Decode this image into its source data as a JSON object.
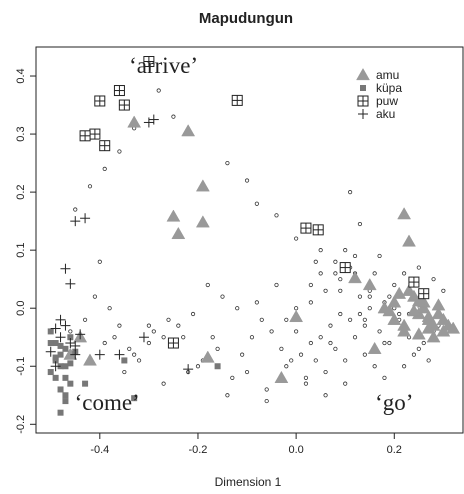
{
  "chart_data": {
    "type": "scatter",
    "title": "Mapudungun",
    "xlabel": "Dimension 1",
    "ylabel": "",
    "xlim": [
      -0.53,
      0.34
    ],
    "ylim": [
      -0.215,
      0.45
    ],
    "xticks": [
      -0.4,
      -0.2,
      0.0,
      0.2
    ],
    "yticks": [
      -0.2,
      -0.1,
      0.0,
      0.1,
      0.2,
      0.3,
      0.4
    ],
    "grid": false,
    "legend_position": "top-right",
    "annotations": [
      {
        "text": "‘arrive’",
        "x": -0.27,
        "y": 0.405
      },
      {
        "text": "‘come’",
        "x": -0.385,
        "y": -0.175
      },
      {
        "text": "‘go’",
        "x": 0.2,
        "y": -0.175
      }
    ],
    "series": [
      {
        "name": "amu",
        "marker": "triangle",
        "color": "#999999",
        "x": [
          -0.33,
          -0.22,
          -0.19,
          -0.25,
          -0.24,
          -0.19,
          -0.18,
          -0.44,
          -0.46,
          -0.42,
          -0.03,
          0.0,
          0.12,
          0.16,
          0.18,
          0.2,
          0.22,
          0.23,
          0.2,
          0.22,
          0.24,
          0.25,
          0.26,
          0.27,
          0.28,
          0.29,
          0.3,
          0.31,
          0.22,
          0.25,
          0.27,
          0.23,
          0.26,
          0.28,
          0.29,
          0.24,
          0.27,
          0.3,
          0.21,
          0.19,
          0.15,
          0.32,
          0.25
        ],
        "y": [
          0.32,
          0.305,
          0.21,
          0.158,
          0.128,
          0.148,
          -0.085,
          -0.05,
          -0.08,
          -0.09,
          -0.12,
          -0.015,
          0.052,
          -0.07,
          0.0,
          0.01,
          0.162,
          0.115,
          -0.02,
          -0.03,
          0.02,
          -0.01,
          0.0,
          -0.02,
          -0.03,
          -0.01,
          -0.02,
          -0.03,
          -0.04,
          -0.045,
          -0.035,
          0.03,
          0.01,
          -0.05,
          0.005,
          -0.005,
          -0.015,
          -0.04,
          0.025,
          -0.005,
          0.04,
          -0.035,
          0.012
        ]
      },
      {
        "name": "küpa",
        "marker": "square",
        "color": "#777777",
        "x": [
          -0.5,
          -0.49,
          -0.48,
          -0.47,
          -0.49,
          -0.48,
          -0.47,
          -0.46,
          -0.49,
          -0.5,
          -0.48,
          -0.47,
          -0.46,
          -0.47,
          -0.48,
          -0.49,
          -0.46,
          -0.45,
          -0.5,
          -0.47,
          -0.48,
          -0.43,
          -0.33,
          -0.35,
          -0.16
        ],
        "y": [
          -0.04,
          -0.06,
          -0.08,
          -0.1,
          -0.12,
          -0.14,
          -0.16,
          -0.05,
          -0.09,
          -0.11,
          -0.18,
          -0.07,
          -0.13,
          -0.15,
          -0.065,
          -0.085,
          -0.095,
          -0.075,
          -0.06,
          -0.12,
          -0.1,
          -0.13,
          -0.155,
          -0.09,
          -0.1
        ]
      },
      {
        "name": "puw",
        "marker": "boxplus",
        "color": "#222222",
        "x": [
          -0.3,
          -0.4,
          -0.36,
          -0.41,
          -0.35,
          -0.43,
          -0.39,
          -0.12,
          0.02,
          0.045,
          0.1,
          0.24,
          0.26,
          -0.25
        ],
        "y": [
          0.425,
          0.357,
          0.375,
          0.3,
          0.35,
          0.297,
          0.28,
          0.358,
          0.138,
          0.135,
          0.07,
          0.045,
          0.025,
          -0.06
        ]
      },
      {
        "name": "aku",
        "marker": "plus",
        "color": "#222222",
        "x": [
          -0.45,
          -0.43,
          -0.47,
          -0.46,
          -0.48,
          -0.48,
          -0.5,
          -0.47,
          -0.45,
          -0.44,
          -0.46,
          -0.49,
          -0.49,
          -0.45,
          -0.3,
          -0.29,
          -0.4,
          -0.36,
          -0.22,
          -0.31
        ],
        "y": [
          0.15,
          0.155,
          0.068,
          0.042,
          -0.02,
          -0.05,
          -0.075,
          -0.03,
          -0.08,
          -0.045,
          -0.06,
          -0.035,
          -0.1,
          -0.065,
          0.32,
          0.325,
          -0.08,
          -0.08,
          -0.105,
          -0.05
        ],
        "marker_style": "star"
      },
      {
        "name": "",
        "marker": "circle",
        "color": "#333333",
        "x": [
          -0.28,
          -0.25,
          -0.33,
          -0.36,
          -0.39,
          -0.42,
          -0.45,
          -0.14,
          -0.1,
          -0.08,
          -0.04,
          0.0,
          0.05,
          0.08,
          0.12,
          0.15,
          0.18,
          0.2,
          0.22,
          0.25,
          0.28,
          0.3,
          0.11,
          0.13,
          0.09,
          0.07,
          0.05,
          0.03,
          0.01,
          -0.01,
          -0.03,
          -0.05,
          -0.07,
          -0.12,
          -0.15,
          -0.18,
          -0.21,
          -0.24,
          -0.27,
          -0.3,
          -0.33,
          -0.36,
          -0.39,
          -0.42,
          0.14,
          0.16,
          0.06,
          0.04,
          0.02,
          0.08,
          0.1,
          0.12,
          0.14,
          0.17,
          0.19,
          0.21,
          0.23,
          0.0,
          -0.02,
          0.03,
          0.06,
          0.09,
          0.11,
          0.13,
          0.15,
          -0.09,
          -0.11,
          -0.13,
          -0.06,
          -0.2,
          -0.23,
          -0.26,
          -0.29,
          -0.32,
          -0.35,
          -0.38,
          -0.41,
          0.18,
          0.22,
          0.24,
          0.26,
          0.28,
          0.2,
          0.16,
          0.12,
          0.08,
          0.04,
          -0.04,
          -0.08,
          -0.16,
          -0.19,
          -0.22,
          -0.27,
          0.06,
          0.1,
          0.14,
          0.18,
          0.02,
          -0.02,
          0.07,
          0.11,
          0.15,
          0.03,
          0.05,
          0.09,
          0.13,
          0.17,
          -0.1,
          -0.14,
          -0.17,
          -0.06,
          -0.3,
          -0.34,
          -0.37,
          -0.4,
          -0.43,
          0.0,
          0.19,
          0.21,
          0.23,
          0.25,
          0.27,
          0.29,
          0.1,
          0.12,
          -0.46
        ],
        "y": [
          0.375,
          0.33,
          0.31,
          0.27,
          0.24,
          0.21,
          0.17,
          0.25,
          0.22,
          0.18,
          0.16,
          0.12,
          0.1,
          0.08,
          0.05,
          0.03,
          0.01,
          0.04,
          0.06,
          0.07,
          0.05,
          0.03,
          0.2,
          0.145,
          -0.01,
          -0.03,
          -0.05,
          -0.06,
          -0.08,
          -0.09,
          -0.07,
          -0.04,
          -0.02,
          0.0,
          0.02,
          0.04,
          -0.01,
          -0.03,
          -0.05,
          -0.06,
          -0.08,
          -0.03,
          -0.06,
          -0.09,
          -0.08,
          -0.1,
          -0.11,
          -0.09,
          -0.12,
          -0.07,
          -0.09,
          -0.05,
          -0.03,
          -0.04,
          -0.06,
          -0.02,
          -0.01,
          -0.04,
          -0.02,
          0.01,
          0.03,
          0.05,
          0.07,
          0.02,
          0.0,
          -0.05,
          -0.08,
          -0.12,
          -0.14,
          -0.1,
          -0.05,
          -0.02,
          -0.04,
          -0.09,
          -0.11,
          0.0,
          0.02,
          -0.12,
          -0.1,
          -0.08,
          -0.06,
          -0.04,
          0.0,
          0.06,
          0.09,
          0.06,
          0.08,
          0.04,
          0.01,
          -0.07,
          -0.09,
          -0.11,
          -0.13,
          -0.15,
          -0.13,
          -0.02,
          -0.06,
          -0.13,
          -0.1,
          -0.06,
          -0.02,
          0.02,
          0.04,
          0.06,
          0.03,
          -0.01,
          0.09,
          -0.11,
          -0.15,
          -0.05,
          -0.16,
          -0.03,
          -0.07,
          -0.05,
          0.08,
          -0.02,
          0.0,
          0.02,
          -0.01,
          -0.05,
          -0.07,
          -0.09,
          -0.03,
          0.1,
          0.06,
          -0.04
        ]
      }
    ]
  }
}
